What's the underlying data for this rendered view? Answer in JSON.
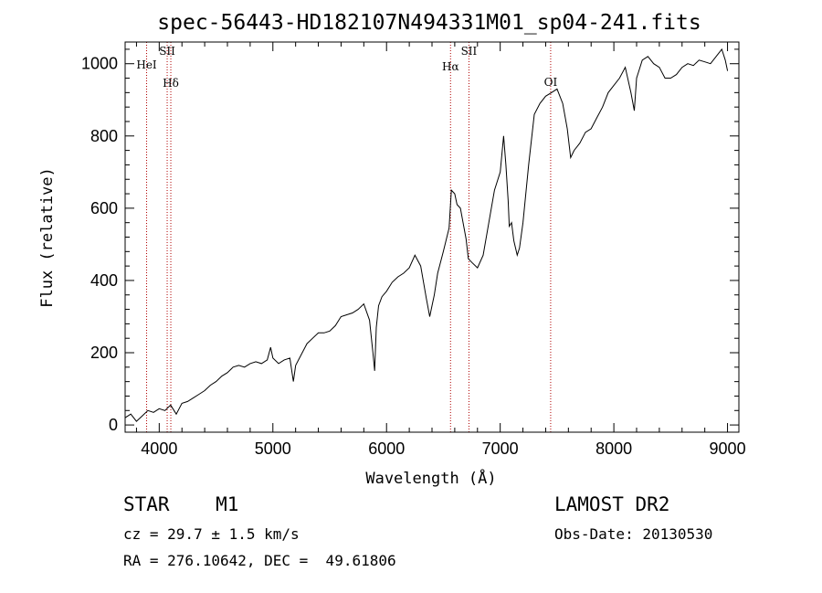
{
  "chart_data": {
    "type": "line",
    "title": "spec-56443-HD182107N494331M01_sp04-241.fits",
    "xlabel": "Wavelength (Å)",
    "ylabel": "Flux (relative)",
    "xlim": [
      3700,
      9100
    ],
    "ylim": [
      -20,
      1060
    ],
    "x_ticks": [
      4000,
      5000,
      6000,
      7000,
      8000,
      9000
    ],
    "y_ticks": [
      0,
      200,
      400,
      600,
      800,
      1000
    ],
    "series": [
      {
        "x": [
          3700,
          3750,
          3800,
          3850,
          3900,
          3950,
          4000,
          4050,
          4100,
          4150,
          4200,
          4250,
          4300,
          4350,
          4400,
          4450,
          4500,
          4550,
          4600,
          4650,
          4700,
          4750,
          4800,
          4850,
          4900,
          4950,
          4980,
          5000,
          5050,
          5100,
          5150,
          5180,
          5200,
          5250,
          5300,
          5350,
          5400,
          5450,
          5500,
          5550,
          5600,
          5650,
          5700,
          5750,
          5800,
          5850,
          5880,
          5895,
          5910,
          5930,
          5960,
          6000,
          6050,
          6100,
          6150,
          6200,
          6250,
          6300,
          6350,
          6380,
          6400,
          6420,
          6450,
          6500,
          6550,
          6570,
          6600,
          6620,
          6650,
          6700,
          6720,
          6750,
          6800,
          6850,
          6900,
          6950,
          7000,
          7030,
          7050,
          7070,
          7080,
          7100,
          7120,
          7150,
          7170,
          7200,
          7250,
          7300,
          7350,
          7400,
          7450,
          7500,
          7550,
          7590,
          7620,
          7650,
          7700,
          7750,
          7800,
          7850,
          7900,
          7950,
          8000,
          8050,
          8100,
          8150,
          8180,
          8200,
          8220,
          8250,
          8300,
          8350,
          8400,
          8450,
          8500,
          8550,
          8600,
          8650,
          8700,
          8750,
          8800,
          8850,
          8900,
          8950,
          8980,
          9000
        ],
        "y": [
          20,
          30,
          10,
          25,
          40,
          35,
          45,
          40,
          55,
          30,
          60,
          65,
          75,
          85,
          95,
          110,
          120,
          135,
          145,
          160,
          165,
          160,
          170,
          175,
          170,
          180,
          215,
          185,
          170,
          180,
          185,
          120,
          165,
          195,
          225,
          240,
          255,
          255,
          260,
          275,
          300,
          305,
          310,
          320,
          335,
          290,
          200,
          150,
          270,
          330,
          355,
          370,
          395,
          410,
          420,
          435,
          470,
          440,
          350,
          300,
          330,
          360,
          420,
          480,
          545,
          650,
          640,
          610,
          600,
          515,
          460,
          450,
          435,
          470,
          560,
          650,
          700,
          800,
          720,
          620,
          550,
          560,
          510,
          470,
          490,
          560,
          720,
          860,
          890,
          910,
          920,
          930,
          890,
          820,
          740,
          760,
          780,
          810,
          820,
          850,
          880,
          920,
          940,
          960,
          990,
          920,
          870,
          960,
          980,
          1010,
          1020,
          1000,
          990,
          960,
          960,
          970,
          990,
          1000,
          995,
          1010,
          1005,
          1000,
          1020,
          1040,
          1010,
          980
        ]
      }
    ],
    "line_markers": [
      {
        "label": "HeI",
        "x": 3889
      },
      {
        "label": "SII",
        "x": 4070
      },
      {
        "label": "Hδ",
        "x": 4102
      },
      {
        "label": "Hα",
        "x": 6563
      },
      {
        "label": "SII",
        "x": 6725
      },
      {
        "label": "OI",
        "x": 7444
      }
    ]
  },
  "info": {
    "class_text": "STAR    M1",
    "survey_text": "LAMOST DR2",
    "cz_text": "cz = 29.7 ± 1.5 km/s",
    "obs_date_text": "Obs-Date: 20130530",
    "radec_text": "RA = 276.10642, DEC =  49.61806"
  },
  "colors": {
    "axes": "#000000",
    "spectrum": "#000000",
    "marker_lines": "#b00000"
  }
}
